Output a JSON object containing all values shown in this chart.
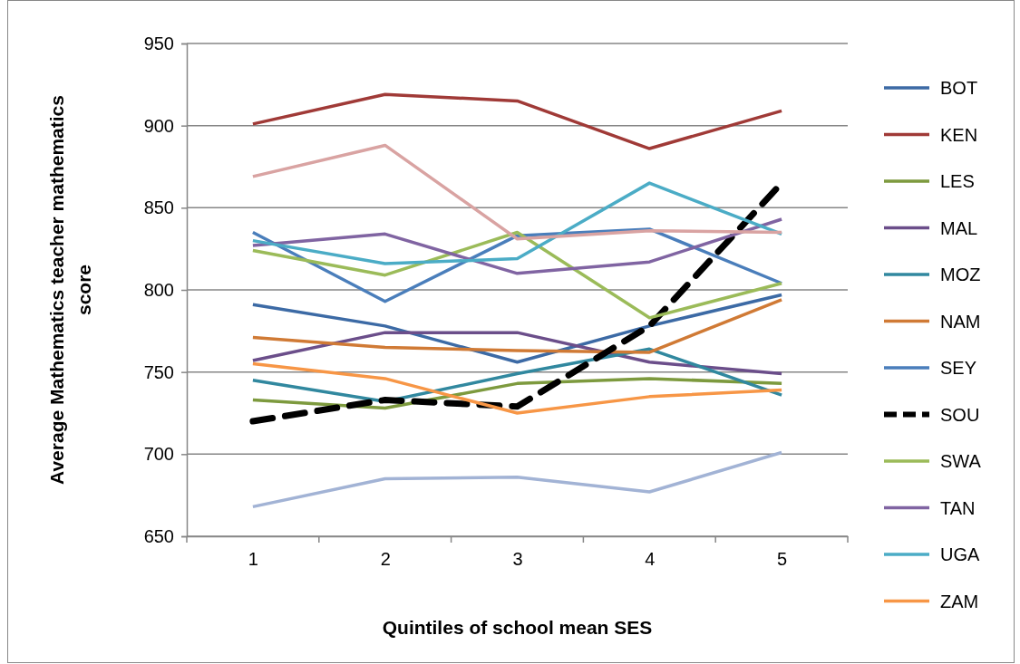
{
  "chart_data": {
    "type": "line",
    "xlabel": "Quintiles of school mean SES",
    "ylabel": "Average Mathematics teacher mathematics score",
    "categories": [
      "1",
      "2",
      "3",
      "4",
      "5"
    ],
    "ylim": [
      650,
      950
    ],
    "yticks": [
      650,
      700,
      750,
      800,
      850,
      900,
      950
    ],
    "grid": "y",
    "legend": "right",
    "series": [
      {
        "name": "BOT",
        "color": "#3c6aa5",
        "values": [
          791,
          778,
          756,
          778,
          797
        ]
      },
      {
        "name": "KEN",
        "color": "#a03a37",
        "values": [
          901,
          919,
          915,
          886,
          909
        ]
      },
      {
        "name": "LES",
        "color": "#7d9a3e",
        "values": [
          733,
          728,
          743,
          746,
          743
        ]
      },
      {
        "name": "MAL",
        "color": "#6b4e8a",
        "values": [
          757,
          774,
          774,
          756,
          749
        ]
      },
      {
        "name": "MOZ",
        "color": "#31889f",
        "values": [
          745,
          732,
          749,
          764,
          736
        ]
      },
      {
        "name": "NAM",
        "color": "#d07a35",
        "values": [
          771,
          765,
          763,
          762,
          794
        ]
      },
      {
        "name": "SEY",
        "color": "#4a7ebb",
        "values": [
          835,
          793,
          833,
          837,
          804
        ]
      },
      {
        "name": "SOU",
        "color": "#000000",
        "line_style": "dashed",
        "values": [
          720,
          733,
          729,
          778,
          865
        ]
      },
      {
        "name": "SWA",
        "color": "#9bbb59",
        "values": [
          824,
          809,
          835,
          783,
          804
        ]
      },
      {
        "name": "TAN",
        "color": "#8064a2",
        "values": [
          827,
          834,
          810,
          817,
          843
        ]
      },
      {
        "name": "UGA",
        "color": "#4bacc6",
        "values": [
          830,
          816,
          819,
          865,
          834
        ]
      },
      {
        "name": "ZAM",
        "color": "#f79646",
        "values": [
          755,
          746,
          725,
          735,
          739
        ]
      },
      {
        "color": "#d9a3a2",
        "values": [
          869,
          888,
          831,
          836,
          835
        ]
      },
      {
        "color": "#a2b3d5",
        "values": [
          668,
          685,
          686,
          677,
          701
        ]
      }
    ]
  }
}
